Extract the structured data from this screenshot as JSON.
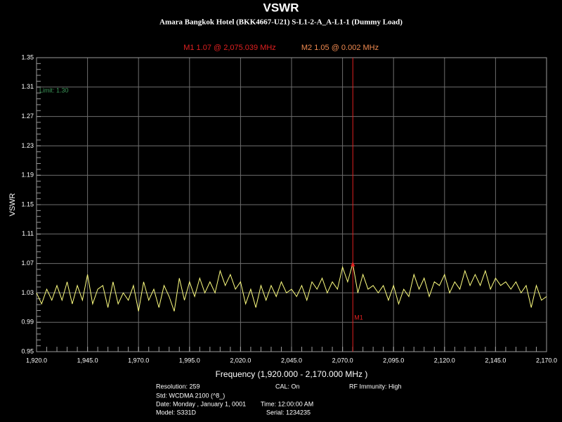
{
  "chart_data": {
    "type": "line",
    "title": "VSWR",
    "subtitle": "Amara Bangkok Hotel (BKK4667-U21) S-L1-2-A_A-L1-1 (Dummy Load)",
    "x_label": "Frequency (1,920.000 - 2,170.000 MHz )",
    "y_label": "VSWR",
    "xlim": [
      1920,
      2170
    ],
    "ylim": [
      0.95,
      1.35
    ],
    "xticks": [
      {
        "value": 1920,
        "label": "1,920.0"
      },
      {
        "value": 1945,
        "label": "1,945.0"
      },
      {
        "value": 1970,
        "label": "1,970.0"
      },
      {
        "value": 1995,
        "label": "1,995.0"
      },
      {
        "value": 2020,
        "label": "2,020.0"
      },
      {
        "value": 2045,
        "label": "2,045.0"
      },
      {
        "value": 2070,
        "label": "2,070.0"
      },
      {
        "value": 2095,
        "label": "2,095.0"
      },
      {
        "value": 2120,
        "label": "2,120.0"
      },
      {
        "value": 2145,
        "label": "2,145.0"
      },
      {
        "value": 2170,
        "label": "2,170.0"
      }
    ],
    "yticks": [
      0.95,
      0.99,
      1.03,
      1.07,
      1.11,
      1.15,
      1.19,
      1.23,
      1.27,
      1.31,
      1.35
    ],
    "grid": true,
    "limit": {
      "value": 1.3,
      "label": "Limit: 1.30",
      "color": "#3c9a5a"
    },
    "markers": [
      {
        "name": "M1",
        "readout": "M1  1.07 @ 2,075.039 MHz",
        "x": 2075.039,
        "y": 1.07,
        "color": "#e02020"
      },
      {
        "readout": "M2  1.05 @ 0.002 MHz",
        "color": "#f08a50"
      }
    ],
    "series": [
      {
        "name": "VSWR",
        "color": "#ffff80",
        "x": [
          1920,
          1922.5,
          1925,
          1927.5,
          1930,
          1932.5,
          1935,
          1937.5,
          1940,
          1942.5,
          1945,
          1947.5,
          1950,
          1952.5,
          1955,
          1957.5,
          1960,
          1962.5,
          1965,
          1967.5,
          1970,
          1972.5,
          1975,
          1977.5,
          1980,
          1982.5,
          1985,
          1987.5,
          1990,
          1992.5,
          1995,
          1997.5,
          2000,
          2002.5,
          2005,
          2007.5,
          2010,
          2012.5,
          2015,
          2017.5,
          2020,
          2022.5,
          2025,
          2027.5,
          2030,
          2032.5,
          2035,
          2037.5,
          2040,
          2042.5,
          2045,
          2047.5,
          2050,
          2052.5,
          2055,
          2057.5,
          2060,
          2062.5,
          2065,
          2067.5,
          2070,
          2072.5,
          2075,
          2077.5,
          2080,
          2082.5,
          2085,
          2087.5,
          2090,
          2092.5,
          2095,
          2097.5,
          2100,
          2102.5,
          2105,
          2107.5,
          2110,
          2112.5,
          2115,
          2117.5,
          2120,
          2122.5,
          2125,
          2127.5,
          2130,
          2132.5,
          2135,
          2137.5,
          2140,
          2142.5,
          2145,
          2147.5,
          2150,
          2152.5,
          2155,
          2157.5,
          2160,
          2162.5,
          2165,
          2167.5,
          2170
        ],
        "values": [
          1.03,
          1.015,
          1.035,
          1.02,
          1.04,
          1.02,
          1.045,
          1.015,
          1.04,
          1.02,
          1.055,
          1.015,
          1.035,
          1.04,
          1.01,
          1.045,
          1.015,
          1.03,
          1.02,
          1.04,
          1.005,
          1.045,
          1.02,
          1.035,
          1.01,
          1.04,
          1.025,
          1.005,
          1.05,
          1.02,
          1.045,
          1.025,
          1.05,
          1.03,
          1.045,
          1.03,
          1.06,
          1.04,
          1.055,
          1.035,
          1.045,
          1.015,
          1.035,
          1.01,
          1.04,
          1.02,
          1.04,
          1.025,
          1.045,
          1.03,
          1.035,
          1.025,
          1.04,
          1.02,
          1.045,
          1.035,
          1.05,
          1.03,
          1.045,
          1.035,
          1.065,
          1.045,
          1.07,
          1.03,
          1.055,
          1.035,
          1.04,
          1.03,
          1.04,
          1.02,
          1.04,
          1.015,
          1.035,
          1.025,
          1.055,
          1.035,
          1.05,
          1.025,
          1.045,
          1.04,
          1.055,
          1.03,
          1.045,
          1.035,
          1.06,
          1.04,
          1.055,
          1.04,
          1.06,
          1.035,
          1.05,
          1.04,
          1.045,
          1.035,
          1.045,
          1.03,
          1.04,
          1.01,
          1.04,
          1.02,
          1.025
        ]
      }
    ]
  },
  "info": {
    "resolution": "Resolution: 259",
    "cal": "CAL: On",
    "rf": "RF Immunity: High",
    "std": "Std: WCDMA 2100 (^8_)",
    "date": "Date: Monday , January 1, 0001",
    "time": "Time: 12:00:00 AM",
    "model": "Model: S331D",
    "serial": "Serial: 1234235"
  }
}
